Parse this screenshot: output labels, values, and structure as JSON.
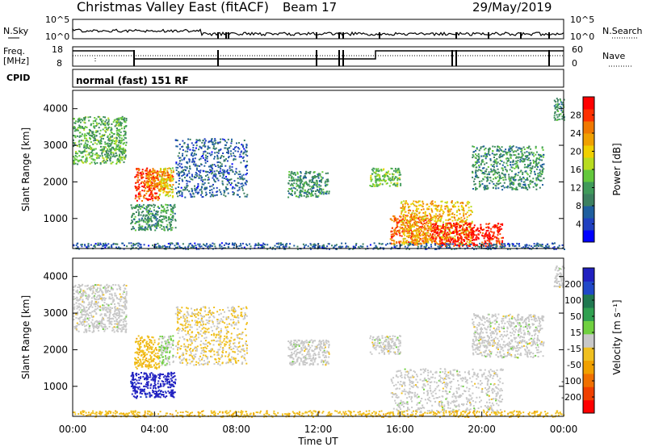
{
  "header": {
    "title": "Christmas Valley East (fitACF)",
    "beam": "Beam 17",
    "date": "29/May/2019"
  },
  "aux_panels": {
    "nsky_label": "N.Sky",
    "nsearch_label": "N.Search",
    "freq_label_1": "Freq.",
    "freq_label_2": "[MHz]",
    "nave_label": "Nave",
    "cpid_label": "CPID",
    "cpid_text": "normal (fast) 151 RF",
    "noise_ticks": [
      "10^5",
      "10^0"
    ],
    "freq_ticks": [
      "18",
      "8"
    ],
    "nave_ticks": [
      "60",
      "0"
    ]
  },
  "x_axis": {
    "label": "Time UT",
    "ticks": [
      "00:00",
      "04:00",
      "08:00",
      "12:00",
      "16:00",
      "20:00",
      "00:00"
    ]
  },
  "y_axis": {
    "label": "Slant Range [km]",
    "ticks": [
      "4000",
      "3000",
      "2000",
      "1000"
    ]
  },
  "power_colorbar": {
    "label": "Power [dB]",
    "ticks": [
      "28",
      "24",
      "20",
      "16",
      "12",
      "8",
      "4"
    ],
    "colors": [
      "#0000ff",
      "#2040c0",
      "#1f5f9f",
      "#3c8060",
      "#409a5a",
      "#63c83c",
      "#b8dc20",
      "#f0d000",
      "#f0a000",
      "#f07800",
      "#ff3000",
      "#ff0000"
    ]
  },
  "velocity_colorbar": {
    "label": "Velocity [m s⁻¹]",
    "ticks": [
      "200",
      "100",
      "50",
      "15",
      "-15",
      "-50",
      "-100",
      "-200"
    ],
    "colors": [
      "#2020c0",
      "#2048c8",
      "#207850",
      "#30a050",
      "#70d040",
      "#c8c8c8",
      "#f0c020",
      "#f0a000",
      "#f07000",
      "#f04000",
      "#ff0000"
    ]
  },
  "chart_data": [
    {
      "type": "heatmap",
      "panel": "power",
      "xlabel": "Time UT",
      "ylabel": "Slant Range [km]",
      "xlim": [
        0,
        24
      ],
      "ylim": [
        180,
        4500
      ],
      "zlabel": "Power [dB]",
      "blobs": [
        {
          "t": [
            0.0,
            2.6
          ],
          "r": [
            2500,
            3800
          ],
          "p": 12
        },
        {
          "t": [
            3.0,
            4.2
          ],
          "r": [
            1500,
            2400
          ],
          "p": 26
        },
        {
          "t": [
            4.2,
            4.9
          ],
          "r": [
            1600,
            2400
          ],
          "p": 18
        },
        {
          "t": [
            3.6,
            4.9
          ],
          "r": [
            1800,
            2300
          ],
          "p": 22
        },
        {
          "t": [
            2.8,
            5.0
          ],
          "r": [
            700,
            1400
          ],
          "p": 10
        },
        {
          "t": [
            5.0,
            8.5
          ],
          "r": [
            1600,
            3200
          ],
          "p": 6
        },
        {
          "t": [
            10.5,
            12.5
          ],
          "r": [
            1600,
            2300
          ],
          "p": 10
        },
        {
          "t": [
            14.5,
            16.0
          ],
          "r": [
            1900,
            2400
          ],
          "p": 14
        },
        {
          "t": [
            15.5,
            17.5
          ],
          "r": [
            300,
            1100
          ],
          "p": 24
        },
        {
          "t": [
            16.0,
            19.5
          ],
          "r": [
            300,
            1500
          ],
          "p": 20
        },
        {
          "t": [
            17.5,
            21.0
          ],
          "r": [
            250,
            900
          ],
          "p": 28
        },
        {
          "t": [
            19.5,
            23.0
          ],
          "r": [
            1800,
            3000
          ],
          "p": 10
        },
        {
          "t": [
            23.5,
            24.0
          ],
          "r": [
            3700,
            4300
          ],
          "p": 10
        },
        {
          "t": [
            0.0,
            24.0
          ],
          "r": [
            180,
            350
          ],
          "p": 6
        }
      ]
    },
    {
      "type": "heatmap",
      "panel": "velocity",
      "xlabel": "Time UT",
      "ylabel": "Slant Range [km]",
      "xlim": [
        0,
        24
      ],
      "ylim": [
        180,
        4500
      ],
      "zlabel": "Velocity [m s⁻¹]",
      "blobs": [
        {
          "t": [
            0.0,
            2.6
          ],
          "r": [
            2500,
            3800
          ],
          "v": 0
        },
        {
          "t": [
            3.0,
            4.2
          ],
          "r": [
            1500,
            2400
          ],
          "v": -40
        },
        {
          "t": [
            4.2,
            4.9
          ],
          "r": [
            1600,
            2400
          ],
          "v": 20
        },
        {
          "t": [
            2.8,
            5.0
          ],
          "r": [
            700,
            1400
          ],
          "v": 180
        },
        {
          "t": [
            5.0,
            8.5
          ],
          "r": [
            1600,
            3200
          ],
          "v": -20
        },
        {
          "t": [
            10.5,
            12.5
          ],
          "r": [
            1600,
            2300
          ],
          "v": 0
        },
        {
          "t": [
            14.5,
            16.0
          ],
          "r": [
            1900,
            2400
          ],
          "v": 0
        },
        {
          "t": [
            15.5,
            21.0
          ],
          "r": [
            300,
            1500
          ],
          "v": 0
        },
        {
          "t": [
            19.5,
            23.0
          ],
          "r": [
            1800,
            3000
          ],
          "v": 0
        },
        {
          "t": [
            23.5,
            24.0
          ],
          "r": [
            3700,
            4300
          ],
          "v": 0
        },
        {
          "t": [
            0.0,
            24.0
          ],
          "r": [
            180,
            350
          ],
          "v": -40
        }
      ]
    }
  ]
}
